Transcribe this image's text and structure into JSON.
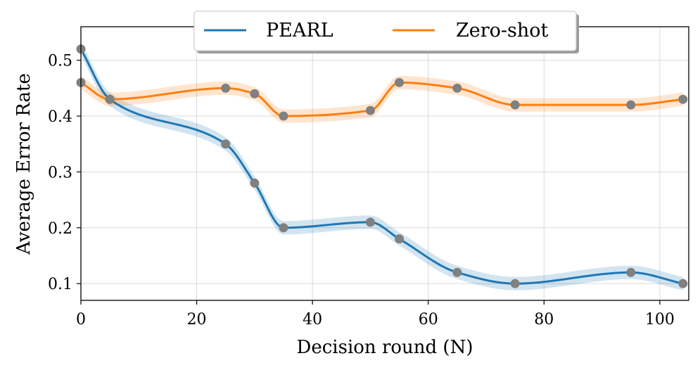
{
  "chart_data": {
    "type": "line",
    "title": "",
    "xlabel": "Decision round (N)",
    "ylabel": "Average Error Rate",
    "xlim": [
      0,
      105
    ],
    "ylim": [
      0.07,
      0.56
    ],
    "xticks": [
      0,
      20,
      40,
      60,
      80,
      100
    ],
    "yticks": [
      0.1,
      0.2,
      0.3,
      0.4,
      0.5
    ],
    "xtick_labels": [
      "0",
      "20",
      "40",
      "60",
      "80",
      "100"
    ],
    "ytick_labels": [
      "0.1",
      "0.2",
      "0.3",
      "0.4",
      "0.5"
    ],
    "grid": true,
    "legend_position": "top-center",
    "band_halfwidth": 0.012,
    "series": [
      {
        "name": "PEARL",
        "color": "#1f77b4",
        "x": [
          0,
          5,
          25,
          30,
          35,
          50,
          55,
          65,
          75,
          95,
          104
        ],
        "values": [
          0.52,
          0.43,
          0.35,
          0.28,
          0.2,
          0.21,
          0.18,
          0.12,
          0.1,
          0.12,
          0.1
        ]
      },
      {
        "name": "Zero-shot",
        "color": "#ff7f0e",
        "x": [
          0,
          5,
          25,
          30,
          35,
          50,
          55,
          65,
          75,
          95,
          104
        ],
        "values": [
          0.46,
          0.43,
          0.45,
          0.44,
          0.4,
          0.41,
          0.46,
          0.45,
          0.42,
          0.42,
          0.43
        ]
      }
    ],
    "marker_color": "#808080"
  }
}
